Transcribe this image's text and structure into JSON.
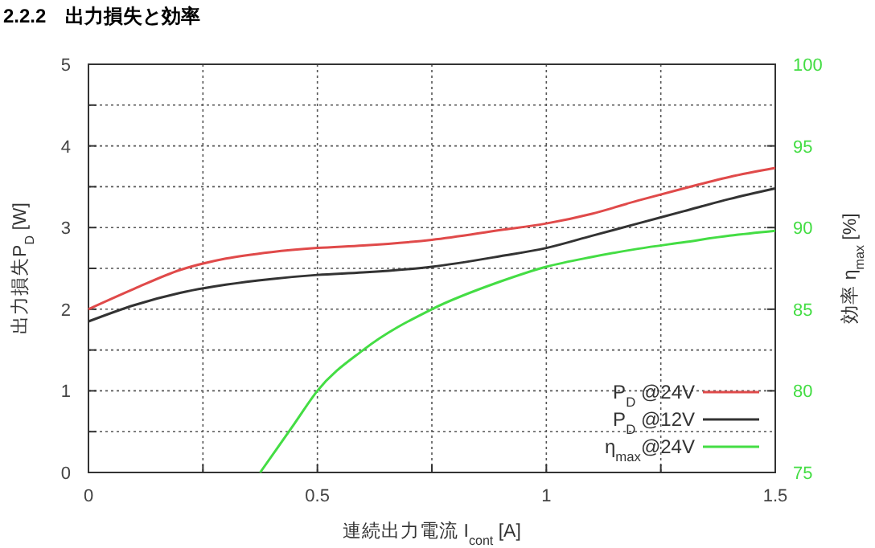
{
  "chart_data": {
    "type": "line",
    "title": "2.2.2　出力損失と効率",
    "xlabel": "連続出力電流 I$_{cont}$ [A]",
    "ylabel": "出力損失P$_{D}$ [W]",
    "y2label": "効率 η$_{max}$ [%]",
    "xlim": [
      0,
      1.5
    ],
    "xticks": [
      0,
      {
        "value": 0.25,
        "label": null
      },
      0.5,
      {
        "value": 0.75,
        "label": null
      },
      1,
      {
        "value": 1.25,
        "label": null
      },
      1.5
    ],
    "ylim": [
      0,
      5
    ],
    "yticks": [
      0,
      {
        "value": 0.5,
        "label": null
      },
      1,
      {
        "value": 1.5,
        "label": null
      },
      2,
      {
        "value": 2.5,
        "label": null
      },
      3,
      {
        "value": 3.5,
        "label": null
      },
      4,
      {
        "value": 4.5,
        "label": null
      },
      5
    ],
    "y2lim": [
      75,
      100
    ],
    "y2ticks": [
      75,
      80,
      85,
      90,
      95,
      100
    ],
    "grid": true,
    "legend": "bottom right",
    "marker": "none",
    "line_style": "solid",
    "series": [
      {
        "name": "P$_{D}$ @24V",
        "color": "#e04a4a",
        "x": [
          0,
          0.1,
          0.2,
          0.3,
          0.4,
          0.5,
          0.6,
          0.75,
          0.9,
          1.0,
          1.1,
          1.2,
          1.3,
          1.4,
          1.5
        ],
        "values": [
          2.0,
          2.25,
          2.48,
          2.62,
          2.7,
          2.75,
          2.78,
          2.85,
          2.97,
          3.05,
          3.17,
          3.33,
          3.48,
          3.62,
          3.73
        ]
      },
      {
        "name": "P$_{D}$ @12V",
        "color": "#333333",
        "x": [
          0,
          0.1,
          0.2,
          0.3,
          0.4,
          0.5,
          0.6,
          0.75,
          0.9,
          1.0,
          1.1,
          1.2,
          1.3,
          1.4,
          1.5
        ],
        "values": [
          1.85,
          2.05,
          2.2,
          2.3,
          2.37,
          2.42,
          2.45,
          2.52,
          2.65,
          2.75,
          2.9,
          3.05,
          3.2,
          3.35,
          3.48
        ]
      },
      {
        "name": "η$_{max}$@24V",
        "color": "#44dd44",
        "axis": "y2",
        "x": [
          0.375,
          0.45,
          0.5,
          0.6,
          0.75,
          0.9,
          1.0,
          1.1,
          1.2,
          1.3,
          1.4,
          1.5
        ],
        "values": [
          75,
          78,
          80,
          82.5,
          85,
          86.7,
          87.6,
          88.2,
          88.7,
          89.1,
          89.5,
          89.8
        ]
      }
    ]
  }
}
